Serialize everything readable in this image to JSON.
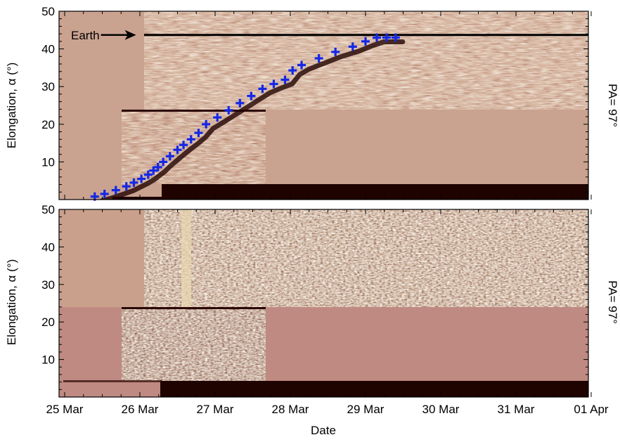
{
  "chart_data": [
    {
      "type": "heatmap",
      "panel": "top",
      "xlabel": "",
      "ylabel": "Elongation, α (°)",
      "side_label": "PA= 97°",
      "ylim": [
        0,
        50
      ],
      "xlim": [
        "25 Mar",
        "01 Apr"
      ],
      "y_ticks": [
        "10",
        "20",
        "30",
        "40",
        "50"
      ],
      "annotation": {
        "text": "Earth",
        "x_day": 0.95,
        "y": 43.7
      },
      "earth_line_elongation": 43.7,
      "colors": {
        "data_background": "#caa290",
        "bright": "#efe0bf",
        "dark": "#2a0400",
        "marker": "#1428e6"
      },
      "series": [
        {
          "name": "",
          "marker": "+",
          "x_day": [
            0.4,
            0.53,
            0.68,
            0.82,
            0.92,
            1.02,
            1.11,
            1.18,
            1.24,
            1.31,
            1.4,
            1.5,
            1.58,
            1.68,
            1.78,
            1.88,
            2.03,
            2.18,
            2.33,
            2.48,
            2.63,
            2.78,
            2.93,
            3.03,
            3.15,
            3.38,
            3.6,
            3.83,
            4.0,
            4.15,
            4.28,
            4.4
          ],
          "y": [
            0.8,
            1.5,
            2.5,
            3.5,
            4.5,
            5.5,
            6.6,
            7.7,
            8.6,
            10.0,
            11.5,
            13.2,
            14.5,
            16.0,
            17.7,
            20.0,
            21.8,
            23.7,
            25.6,
            27.5,
            29.4,
            30.7,
            31.8,
            34.3,
            35.7,
            37.5,
            39.2,
            40.6,
            42.0,
            43.0,
            43.0,
            43.0
          ]
        }
      ]
    },
    {
      "type": "heatmap",
      "panel": "bottom",
      "xlabel": "Date",
      "ylabel": "Elongation, α (°)",
      "side_label": "PA= 97°",
      "ylim": [
        0,
        50
      ],
      "xlim": [
        "25 Mar",
        "01 Apr"
      ],
      "y_ticks": [
        "10",
        "20",
        "30",
        "40",
        "50"
      ],
      "x_ticks": [
        "25 Mar",
        "26 Mar",
        "27 Mar",
        "28 Mar",
        "29 Mar",
        "30 Mar",
        "31 Mar",
        "01 Apr"
      ],
      "colors": {
        "data_background": "#bf8a82",
        "bright": "#f2e6d8",
        "dark": "#2a0400"
      }
    }
  ]
}
